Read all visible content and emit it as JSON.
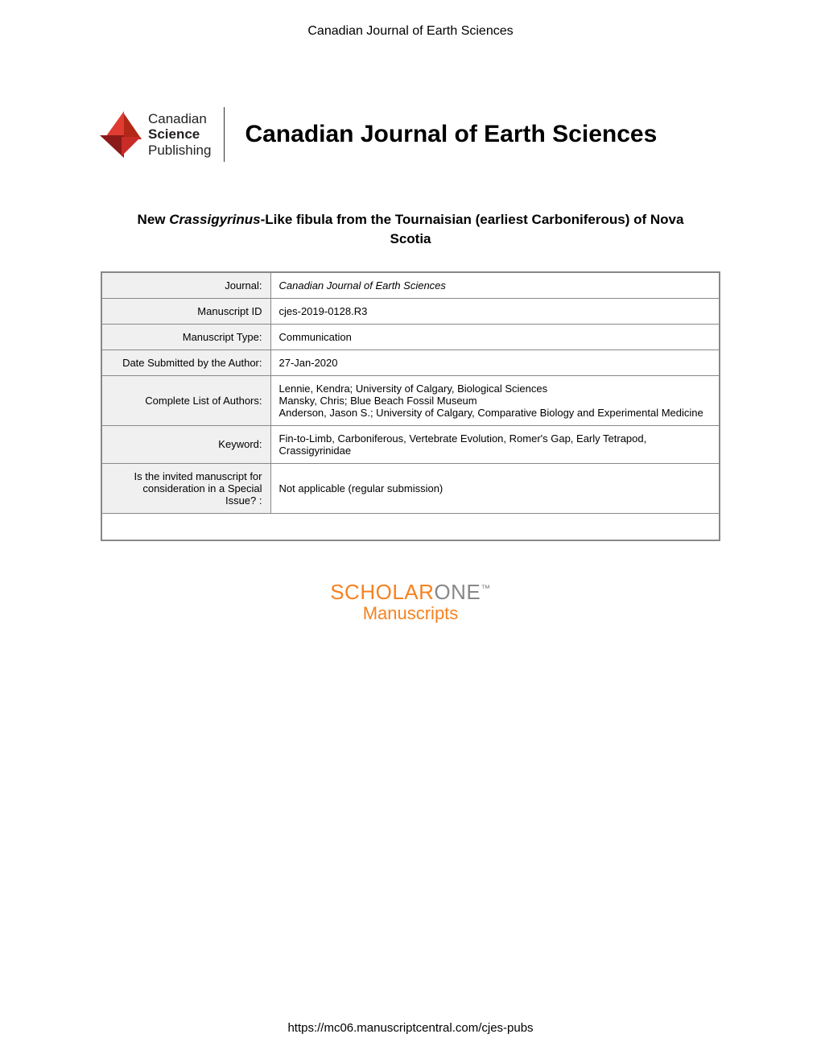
{
  "header": {
    "journal_header": "Canadian Journal of Earth Sciences"
  },
  "logo": {
    "line1": "Canadian",
    "line2": "Science",
    "line3": "Publishing"
  },
  "journal_name": "Canadian Journal of Earth Sciences",
  "title": {
    "prefix": "New ",
    "italic": "Crassigyrinus",
    "suffix": "-Like fibula from the Tournaisian (earliest Carboniferous) of Nova Scotia"
  },
  "table": {
    "rows": [
      {
        "label": "Journal:",
        "value": "Canadian Journal of Earth Sciences",
        "italic": true
      },
      {
        "label": "Manuscript ID",
        "value": "cjes-2019-0128.R3",
        "italic": false
      },
      {
        "label": "Manuscript Type:",
        "value": "Communication",
        "italic": false
      },
      {
        "label": "Date Submitted by the Author:",
        "value": "27-Jan-2020",
        "italic": false
      },
      {
        "label": "Complete List of Authors:",
        "value": "Lennie, Kendra; University of Calgary, Biological Sciences\nMansky, Chris; Blue Beach Fossil Museum\nAnderson, Jason S.; University of Calgary, Comparative Biology and Experimental Medicine",
        "italic": false
      },
      {
        "label": "Keyword:",
        "value": "Fin-to-Limb, Carboniferous, Vertebrate Evolution, Romer's Gap, Early Tetrapod, Crassigyrinidae",
        "italic": false
      },
      {
        "label": "Is the invited manuscript for consideration in a Special Issue? :",
        "value": "Not applicable (regular submission)",
        "italic": false
      }
    ]
  },
  "scholarone": {
    "scholar": "SCHOLAR",
    "one": "ONE",
    "tm": "™",
    "manuscripts": "Manuscripts"
  },
  "footer": {
    "url": "https://mc06.manuscriptcentral.com/cjes-pubs"
  }
}
